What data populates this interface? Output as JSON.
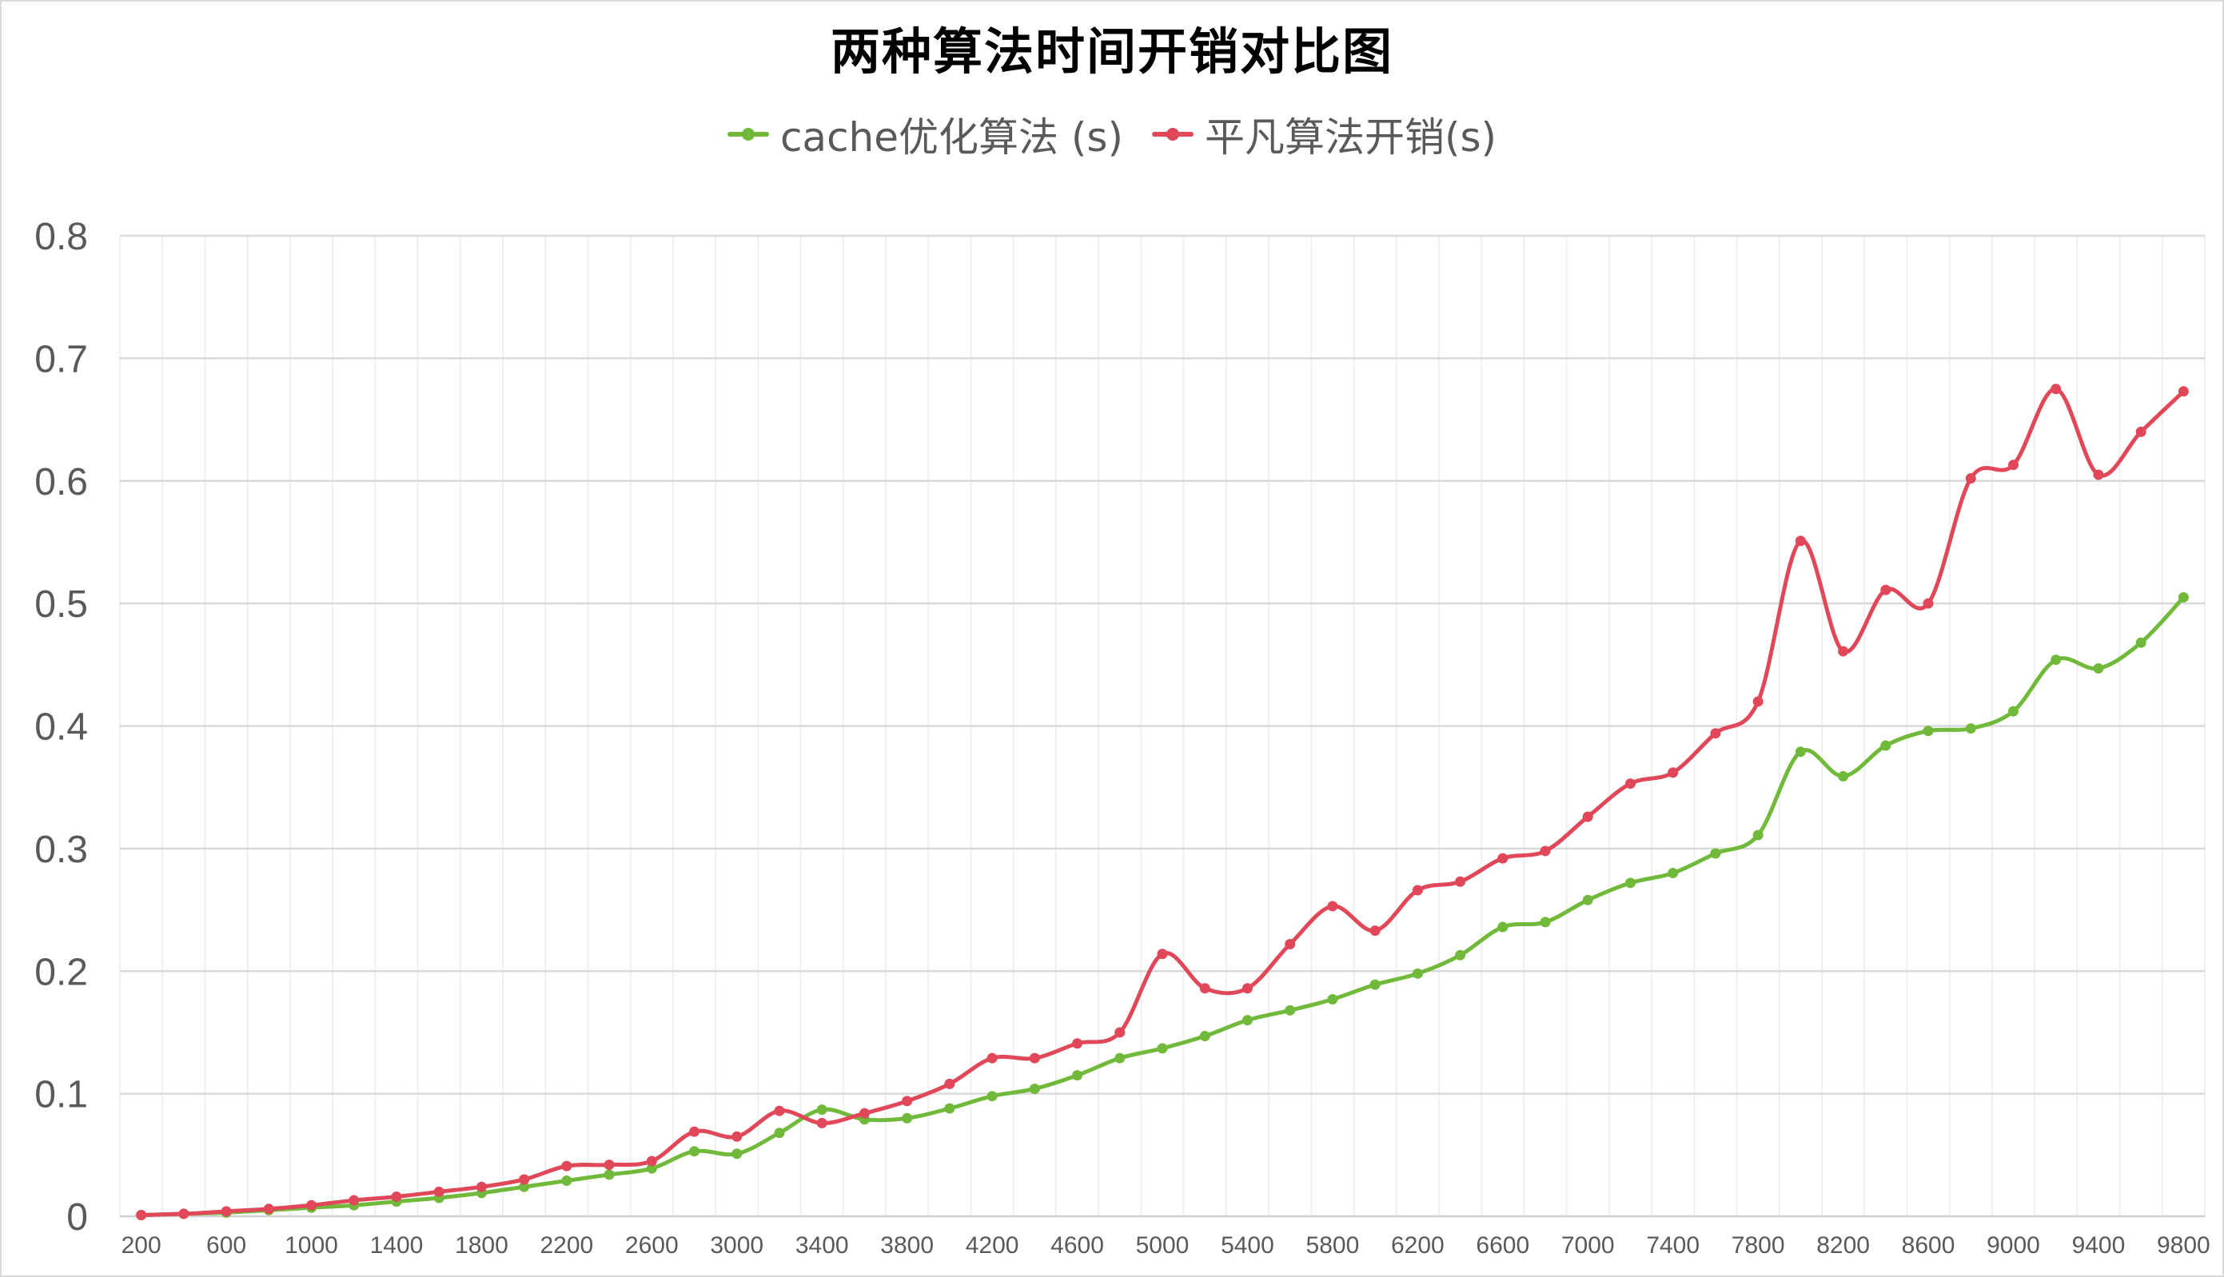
{
  "chart_data": {
    "type": "line",
    "title": "两种算法时间开销对比图",
    "xlabel": "",
    "ylabel": "",
    "ylim": [
      0,
      0.8
    ],
    "yticks": [
      "0",
      "0.1",
      "0.2",
      "0.3",
      "0.4",
      "0.5",
      "0.6",
      "0.7",
      "0.8"
    ],
    "x": [
      200,
      400,
      600,
      800,
      1000,
      1200,
      1400,
      1600,
      1800,
      2000,
      2200,
      2400,
      2600,
      2800,
      3000,
      3200,
      3400,
      3600,
      3800,
      4000,
      4200,
      4400,
      4600,
      4800,
      5000,
      5200,
      5400,
      5600,
      5800,
      6000,
      6200,
      6400,
      6600,
      6800,
      7000,
      7200,
      7400,
      7600,
      7800,
      8000,
      8200,
      8400,
      8600,
      8800,
      9000,
      9200,
      9400,
      9600,
      9800
    ],
    "xtick_labels": [
      "200",
      "600",
      "1000",
      "1400",
      "1800",
      "2200",
      "2600",
      "3000",
      "3400",
      "3800",
      "4200",
      "4600",
      "5000",
      "5400",
      "5800",
      "6200",
      "6600",
      "7000",
      "7400",
      "7800",
      "8200",
      "8600",
      "9000",
      "9400",
      "9800"
    ],
    "grid": "both",
    "legend_position": "top",
    "series": [
      {
        "name": "cache优化算法 (s)",
        "color": "#70b93a",
        "values": [
          0.001,
          0.002,
          0.003,
          0.005,
          0.007,
          0.009,
          0.012,
          0.015,
          0.019,
          0.024,
          0.029,
          0.034,
          0.039,
          0.053,
          0.051,
          0.068,
          0.087,
          0.079,
          0.08,
          0.088,
          0.098,
          0.104,
          0.115,
          0.129,
          0.137,
          0.147,
          0.16,
          0.168,
          0.177,
          0.189,
          0.198,
          0.213,
          0.236,
          0.24,
          0.258,
          0.272,
          0.28,
          0.296,
          0.311,
          0.379,
          0.359,
          0.384,
          0.396,
          0.398,
          0.412,
          0.454,
          0.447,
          0.468,
          0.505
        ]
      },
      {
        "name": "平凡算法开销(s)",
        "color": "#e04759",
        "values": [
          0.001,
          0.002,
          0.004,
          0.006,
          0.009,
          0.013,
          0.016,
          0.02,
          0.024,
          0.03,
          0.041,
          0.042,
          0.045,
          0.069,
          0.065,
          0.086,
          0.076,
          0.084,
          0.094,
          0.108,
          0.129,
          0.129,
          0.141,
          0.15,
          0.214,
          0.186,
          0.186,
          0.222,
          0.253,
          0.233,
          0.266,
          0.273,
          0.292,
          0.298,
          0.326,
          0.353,
          0.362,
          0.394,
          0.42,
          0.551,
          0.461,
          0.511,
          0.5,
          0.602,
          0.613,
          0.675,
          0.605,
          0.64,
          0.673
        ]
      }
    ]
  }
}
